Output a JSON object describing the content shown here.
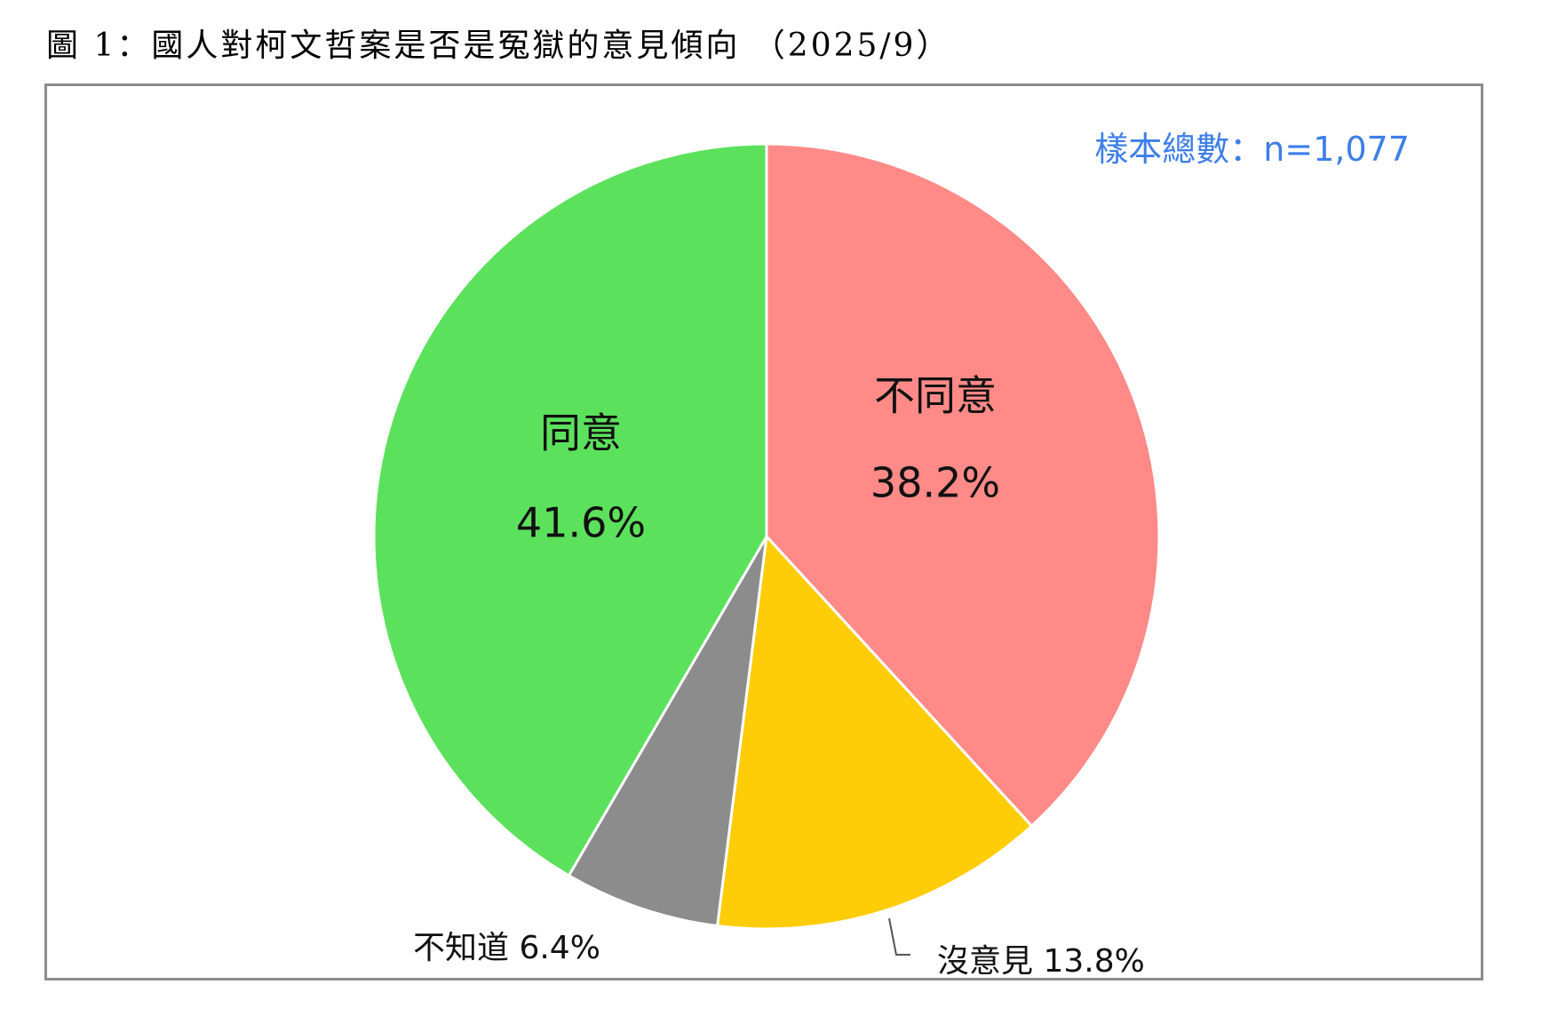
{
  "figure": {
    "caption": "圖 1：國人對柯文哲案是否是冤獄的意見傾向 （2025/9）",
    "sample_note": "樣本總數：n=1,077"
  },
  "chart_data": {
    "type": "pie",
    "title": "",
    "start": "top, clockwise",
    "slices": [
      {
        "label": "不同意",
        "value": 38.2,
        "display": "38.2%",
        "color": "#ff8a88",
        "label_position": "inside"
      },
      {
        "label": "沒意見",
        "value": 13.8,
        "display": "13.8%",
        "color": "#ffcc08",
        "label_position": "outside"
      },
      {
        "label": "不知道",
        "value": 6.4,
        "display": "6.4%",
        "color": "#8c8c8c",
        "label_position": "outside"
      },
      {
        "label": "同意",
        "value": 41.6,
        "display": "41.6%",
        "color": "#5ce15c",
        "label_position": "inside"
      }
    ],
    "legend": "none",
    "slice_border_color": "#ffffff"
  }
}
